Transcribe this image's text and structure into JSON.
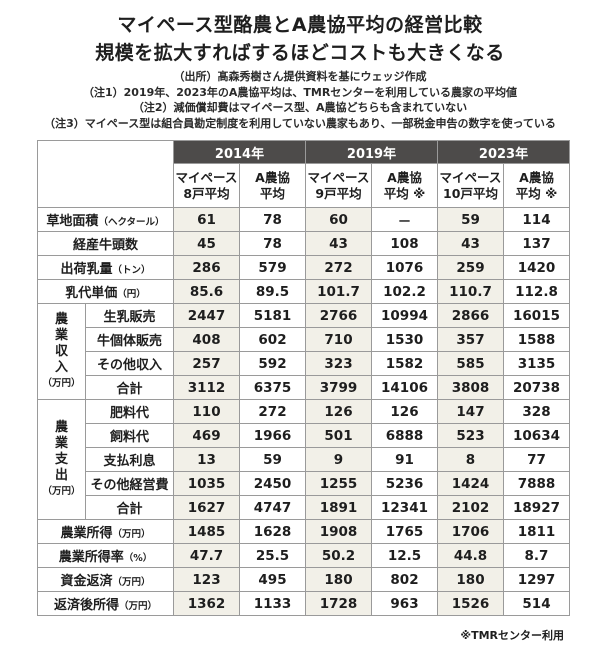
{
  "title": {
    "line1": "マイペース型酪農とA農協平均の経営比較",
    "line2": "規模を拡大すればするほどコストも大きくなる"
  },
  "notes": [
    "（出所）髙森秀樹さん提供資料を基にウェッジ作成",
    "（注1）2019年、2023年のA農協平均は、TMRセンターを利用している農家の平均値",
    "（注2）減価償却費はマイペース型、A農協どちらも含まれていない",
    "（注3）マイペース型は組合員勘定制度を利用していない農家もあり、一部税金申告の数字を使っている"
  ],
  "table": {
    "years": [
      "2014年",
      "2019年",
      "2023年"
    ],
    "columns": [
      [
        "マイペース",
        "8戸平均"
      ],
      [
        "A農協",
        "平均"
      ],
      [
        "マイペース",
        "9戸平均"
      ],
      [
        "A農協",
        "平均 ※"
      ],
      [
        "マイペース",
        "10戸平均"
      ],
      [
        "A農協",
        "平均 ※"
      ]
    ],
    "rows_top": [
      {
        "label": "草地面積",
        "unit": "（ヘクタール）",
        "values": [
          "61",
          "78",
          "60",
          "－",
          "59",
          "114"
        ]
      },
      {
        "label": "経産牛頭数",
        "unit": "",
        "values": [
          "45",
          "78",
          "43",
          "108",
          "43",
          "137"
        ]
      },
      {
        "label": "出荷乳量",
        "unit": "（トン）",
        "values": [
          "286",
          "579",
          "272",
          "1076",
          "259",
          "1420"
        ]
      },
      {
        "label": "乳代単価",
        "unit": "（円）",
        "values": [
          "85.6",
          "89.5",
          "101.7",
          "102.2",
          "110.7",
          "112.8"
        ]
      }
    ],
    "income": {
      "group": [
        "農",
        "業",
        "収",
        "入"
      ],
      "unit": "（万円）",
      "rows": [
        {
          "label": "生乳販売",
          "values": [
            "2447",
            "5181",
            "2766",
            "10994",
            "2866",
            "16015"
          ]
        },
        {
          "label": "牛個体販売",
          "values": [
            "408",
            "602",
            "710",
            "1530",
            "357",
            "1588"
          ]
        },
        {
          "label": "その他収入",
          "values": [
            "257",
            "592",
            "323",
            "1582",
            "585",
            "3135"
          ]
        },
        {
          "label": "合計",
          "values": [
            "3112",
            "6375",
            "3799",
            "14106",
            "3808",
            "20738"
          ]
        }
      ]
    },
    "expense": {
      "group": [
        "農",
        "業",
        "支",
        "出"
      ],
      "unit": "（万円）",
      "rows": [
        {
          "label": "肥料代",
          "values": [
            "110",
            "272",
            "126",
            "126",
            "147",
            "328"
          ]
        },
        {
          "label": "飼料代",
          "values": [
            "469",
            "1966",
            "501",
            "6888",
            "523",
            "10634"
          ]
        },
        {
          "label": "支払利息",
          "values": [
            "13",
            "59",
            "9",
            "91",
            "8",
            "77"
          ]
        },
        {
          "label": "その他経営費",
          "values": [
            "1035",
            "2450",
            "1255",
            "5236",
            "1424",
            "7888"
          ]
        },
        {
          "label": "合計",
          "values": [
            "1627",
            "4747",
            "1891",
            "12341",
            "2102",
            "18927"
          ]
        }
      ]
    },
    "rows_bottom": [
      {
        "label": "農業所得",
        "unit": "（万円）",
        "values": [
          "1485",
          "1628",
          "1908",
          "1765",
          "1706",
          "1811"
        ]
      },
      {
        "label": "農業所得率",
        "unit": "（%）",
        "values": [
          "47.7",
          "25.5",
          "50.2",
          "12.5",
          "44.8",
          "8.7"
        ]
      },
      {
        "label": "資金返済",
        "unit": "（万円）",
        "values": [
          "123",
          "495",
          "180",
          "802",
          "180",
          "1297"
        ]
      },
      {
        "label": "返済後所得",
        "unit": "（万円）",
        "values": [
          "1362",
          "1133",
          "1728",
          "963",
          "1526",
          "514"
        ]
      }
    ]
  },
  "footnote": "※TMRセンター利用",
  "colors": {
    "header_bg": "#4d4b4a",
    "mypace_col_bg": "#f2f0e8",
    "border": "#9a9a9a"
  }
}
